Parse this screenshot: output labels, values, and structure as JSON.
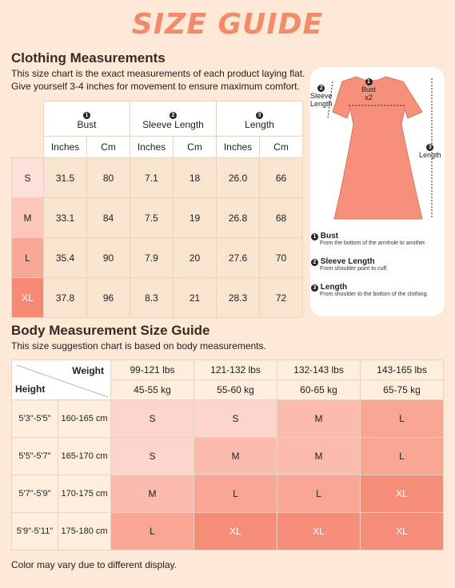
{
  "title": "SIZE GUIDE",
  "clothing": {
    "heading": "Clothing Measurements",
    "desc1": "This size chart is the exact measurements of each product laying flat.",
    "desc2": "Give yourself 3-4 inches for movement to ensure maximum comfort.",
    "columns": [
      {
        "num": "1",
        "label": "Bust"
      },
      {
        "num": "2",
        "label": "Sleeve Length"
      },
      {
        "num": "3",
        "label": "Length"
      }
    ],
    "units": [
      "Inches",
      "Cm",
      "Inches",
      "Cm",
      "Inches",
      "Cm"
    ],
    "rows": [
      {
        "size": "S",
        "color": "#fde0da",
        "values": [
          "31.5",
          "80",
          "7.1",
          "18",
          "26.0",
          "66"
        ]
      },
      {
        "size": "M",
        "color": "#fcc6bb",
        "values": [
          "33.1",
          "84",
          "7.5",
          "19",
          "26.8",
          "68"
        ]
      },
      {
        "size": "L",
        "color": "#f9a797",
        "values": [
          "35.4",
          "90",
          "7.9",
          "20",
          "27.6",
          "70"
        ]
      },
      {
        "size": "XL",
        "color": "#f78a74",
        "values": [
          "37.8",
          "96",
          "8.3",
          "21",
          "28.3",
          "72"
        ]
      }
    ]
  },
  "diagram": {
    "bust": "Bust",
    "bust_x2": "x2",
    "sleeve": "Sleeve",
    "sleeve2": "Length",
    "length": "Length",
    "n1": "1",
    "n2": "2",
    "n3": "3",
    "dress_color": "#f6907b"
  },
  "legend": [
    {
      "num": "1",
      "title": "Bust",
      "sub": "From the bottom of the armhole to another."
    },
    {
      "num": "2",
      "title": "Sleeve Length",
      "sub": "From shoulder point to cuff."
    },
    {
      "num": "3",
      "title": "Length",
      "sub": "From shoulder to the bottom of the clothing."
    }
  ],
  "body": {
    "heading": "Body Measurement Size Guide",
    "desc": "This size suggestion chart is based on body measurements.",
    "weight_label": "Weight",
    "height_label": "Height",
    "lbs": [
      "99-121 lbs",
      "121-132 lbs",
      "132-143 lbs",
      "143-165 lbs"
    ],
    "kg": [
      "45-55 kg",
      "55-60 kg",
      "60-65 kg",
      "65-75 kg"
    ],
    "rows": [
      {
        "ft": "5'3\"-5'5\"",
        "cm": "160-165 cm",
        "sizes": [
          "S",
          "S",
          "M",
          "L"
        ]
      },
      {
        "ft": "5'5\"-5'7\"",
        "cm": "165-170 cm",
        "sizes": [
          "S",
          "M",
          "M",
          "L"
        ]
      },
      {
        "ft": "5'7\"-5'9\"",
        "cm": "170-175 cm",
        "sizes": [
          "M",
          "L",
          "L",
          "XL"
        ]
      },
      {
        "ft": "5'9\"-5'11\"",
        "cm": "175-180 cm",
        "sizes": [
          "L",
          "XL",
          "XL",
          "XL"
        ]
      }
    ],
    "size_colors": {
      "S": "#fcd5cc",
      "M": "#fbbcad",
      "L": "#f9a594",
      "XL": "#f68d78"
    }
  },
  "note": "Color may vary due to different display."
}
